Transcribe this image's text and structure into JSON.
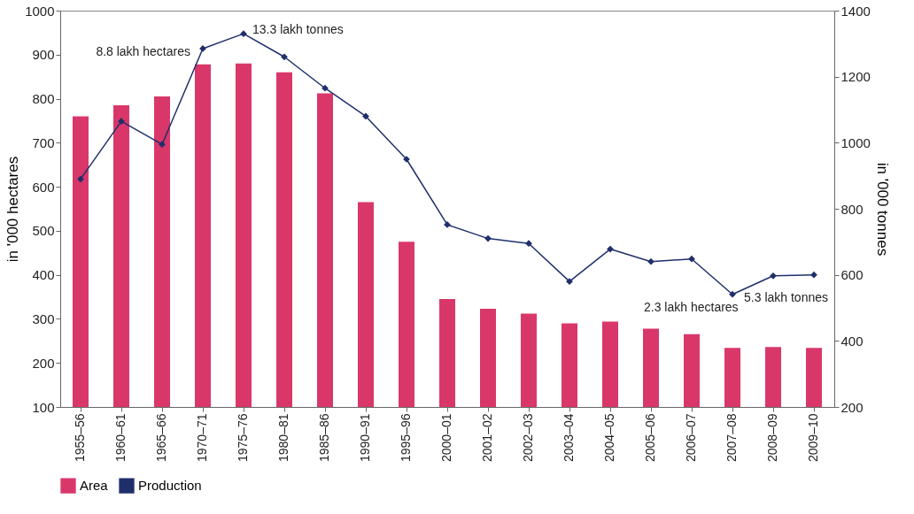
{
  "chart_data": {
    "type": "bar",
    "categories": [
      "1955–56",
      "1960–61",
      "1965–66",
      "1970–71",
      "1975–76",
      "1980–81",
      "1985–86",
      "1990–91",
      "1995–96",
      "2000–01",
      "2001–02",
      "2002–03",
      "2003–04",
      "2004–05",
      "2005–06",
      "2006–07",
      "2007–08",
      "2008–09",
      "2009–10"
    ],
    "series": [
      {
        "name": "Area",
        "color": "#d9376a",
        "values": [
          760,
          785,
          805,
          878,
          880,
          860,
          812,
          565,
          475,
          345,
          323,
          312,
          290,
          294,
          278,
          265,
          234,
          236,
          234
        ]
      },
      {
        "name": "Production",
        "type": "line",
        "axis": "y2",
        "color": "#1f2f6b",
        "values": [
          890,
          1065,
          995,
          1285,
          1330,
          1260,
          1165,
          1080,
          950,
          752,
          710,
          695,
          580,
          678,
          640,
          648,
          541,
          597,
          600
        ]
      }
    ],
    "ylabel": "in '000 hectares",
    "y2label": "in '000 tonnes",
    "ylim": [
      100,
      1000
    ],
    "yticks": [
      100,
      200,
      300,
      400,
      500,
      600,
      700,
      800,
      900,
      1000
    ],
    "y2lim": [
      200,
      1400
    ],
    "y2ticks": [
      200,
      400,
      600,
      800,
      1000,
      1200,
      1400
    ],
    "marker": "diamond",
    "legend": "bottom",
    "annotations": [
      {
        "text": "8.8 lakh hectares",
        "x": "1970–71",
        "y": 878
      },
      "13.3 lakh tonnes",
      "5.3 lakh tonnes",
      {
        "text": "2.3 lakh hectares",
        "x": "2007–08",
        "y": 234
      }
    ]
  }
}
